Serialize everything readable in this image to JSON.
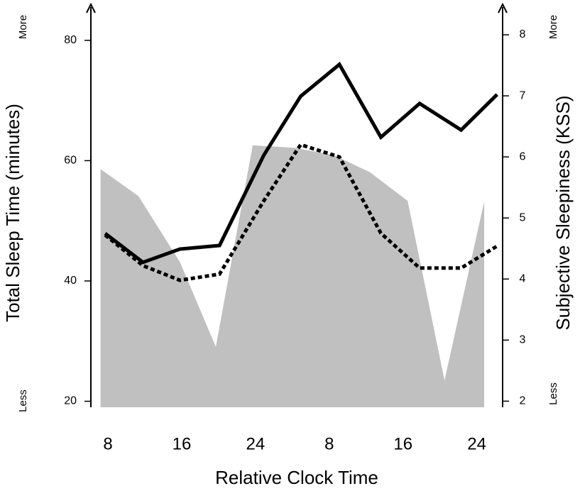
{
  "chart_data": {
    "type": "line",
    "x_label": "Relative Clock Time",
    "y_label": "Total Sleep Time (minutes)",
    "y2_label": "Subjective Sleepiness (KSS)",
    "annotations": [
      "More",
      "Less",
      "More",
      "Less"
    ],
    "xlim": [
      6.15,
      50.8
    ],
    "xticks": [
      8,
      16,
      24,
      {
        "value": 32,
        "label": "8"
      },
      {
        "value": 40,
        "label": "16"
      },
      {
        "value": 48,
        "label": "24"
      }
    ],
    "ylim": [
      19,
      86
    ],
    "yticks": [
      20,
      40,
      60,
      80
    ],
    "y2lim": [
      1.9,
      8.5
    ],
    "y2ticks": [
      2,
      3,
      4,
      5,
      6,
      7,
      8
    ],
    "grid": false,
    "series": [
      {
        "type": "area",
        "axis": "y2",
        "color": "#c0c0c0",
        "x": [
          7.2,
          11.3,
          15.8,
          19.7,
          23.7,
          28.2,
          32.5,
          36.4,
          40.5,
          44.5,
          48.8
        ],
        "values": [
          5.8,
          5.36,
          4.28,
          2.89,
          6.19,
          6.15,
          6.03,
          5.75,
          5.28,
          2.34,
          5.27
        ]
      },
      {
        "type": "line",
        "axis": "y",
        "color": "#000000",
        "dash": "solid",
        "x": [
          7.7,
          11.8,
          15.8,
          20.1,
          24.9,
          28.9,
          33.1,
          37.6,
          41.8,
          46.3,
          50.2
        ],
        "values": [
          47.9,
          43.1,
          45.3,
          45.9,
          60.9,
          70.7,
          76.0,
          63.9,
          69.5,
          65.1,
          71.0
        ]
      },
      {
        "type": "line",
        "axis": "y2",
        "color": "#000000",
        "dash": "dotted",
        "x": [
          7.7,
          11.8,
          15.8,
          20.1,
          24.9,
          28.9,
          33.1,
          37.6,
          41.8,
          46.3,
          50.2
        ],
        "values": [
          4.72,
          4.22,
          3.98,
          4.08,
          5.28,
          6.2,
          6.0,
          4.75,
          4.18,
          4.18,
          4.54
        ]
      }
    ]
  }
}
